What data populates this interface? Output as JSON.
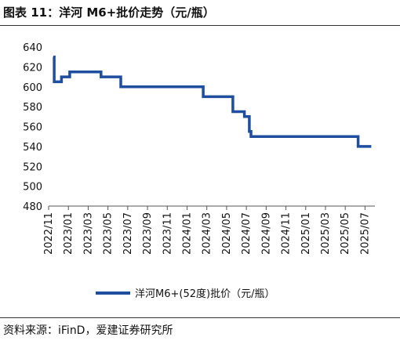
{
  "title": "图表 11：洋河 M6+批价走势（元/瓶）",
  "source": "资料来源：iFinD，爱建证券研究所",
  "chart_data": {
    "type": "line",
    "ylim": [
      480,
      640
    ],
    "y_ticks": [
      480,
      500,
      520,
      540,
      560,
      580,
      600,
      620,
      640
    ],
    "x_range": [
      "2022-11",
      "2025-08"
    ],
    "x_ticks": [
      "2022/11",
      "2023/01",
      "2023/03",
      "2023/05",
      "2023/07",
      "2023/09",
      "2023/11",
      "2024/01",
      "2024/03",
      "2024/05",
      "2024/07",
      "2024/09",
      "2024/11",
      "2025/01",
      "2025/03",
      "2025/05",
      "2025/07"
    ],
    "grid": false,
    "legend_position": "bottom",
    "series": [
      {
        "name": "洋河M6+(52度)批价（元/瓶）",
        "color": "#1f4e9e",
        "step": true,
        "points": [
          {
            "x": "2022-11-15",
            "y": 630
          },
          {
            "x": "2022-11-18",
            "y": 605
          },
          {
            "x": "2022-12-10",
            "y": 610
          },
          {
            "x": "2023-01-05",
            "y": 615
          },
          {
            "x": "2023-04-10",
            "y": 610
          },
          {
            "x": "2023-06-10",
            "y": 600
          },
          {
            "x": "2024-02-20",
            "y": 590
          },
          {
            "x": "2024-05-20",
            "y": 575
          },
          {
            "x": "2024-06-25",
            "y": 570
          },
          {
            "x": "2024-07-10",
            "y": 555
          },
          {
            "x": "2024-07-15",
            "y": 550
          },
          {
            "x": "2025-06-10",
            "y": 540
          },
          {
            "x": "2025-07-20",
            "y": 540
          }
        ]
      }
    ]
  }
}
